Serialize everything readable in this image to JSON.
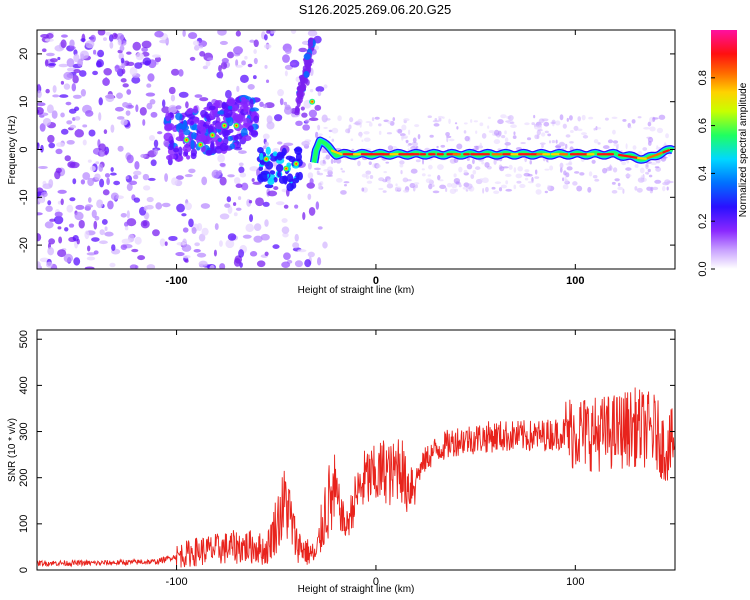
{
  "title": "S126.2025.269.06.20.G25",
  "colors": {
    "snr_line": "#e8231c",
    "colormap": [
      "#ffffff",
      "#c8a0ff",
      "#8a28ff",
      "#2a10ff",
      "#0070ff",
      "#00d8ff",
      "#20ff60",
      "#c8ff00",
      "#ffd200",
      "#ff6a00",
      "#ff1010",
      "#ff10a0"
    ]
  },
  "chart_data": [
    {
      "type": "heatmap",
      "name": "spectrogram",
      "xlabel": "Height of straight line (km)",
      "ylabel": "Frequency (Hz)",
      "xlim": [
        -170,
        150
      ],
      "ylim": [
        -25,
        25
      ],
      "xticks": [
        -100,
        0,
        100
      ],
      "yticks": [
        20,
        10,
        0,
        -10,
        -20
      ],
      "ridge": [
        {
          "x": -33,
          "y": -8
        },
        {
          "x": -30,
          "y": 0
        },
        {
          "x": -28,
          "y": 2
        },
        {
          "x": -20,
          "y": -1
        },
        {
          "x": -10,
          "y": -1
        },
        {
          "x": 0,
          "y": -1
        },
        {
          "x": 20,
          "y": -1
        },
        {
          "x": 40,
          "y": -1
        },
        {
          "x": 60,
          "y": -1
        },
        {
          "x": 80,
          "y": -1
        },
        {
          "x": 100,
          "y": -1
        },
        {
          "x": 120,
          "y": -1
        },
        {
          "x": 135,
          "y": -2
        },
        {
          "x": 148,
          "y": 0
        }
      ],
      "colorbar": {
        "label": "Normalized spectral amplitude",
        "range": [
          0,
          1
        ],
        "ticks": [
          0.0,
          0.2,
          0.4,
          0.6,
          0.8
        ]
      }
    },
    {
      "type": "line",
      "name": "snr",
      "xlabel": "Height of straight line (km)",
      "ylabel": "SNR (10 * v/v)",
      "xlim": [
        -170,
        150
      ],
      "ylim": [
        0,
        520
      ],
      "xticks": [
        -100,
        0,
        100
      ],
      "yticks": [
        0,
        100,
        200,
        300,
        400,
        500
      ],
      "series": [
        {
          "name": "SNR",
          "x": [
            -170,
            -140,
            -110,
            -100,
            -90,
            -80,
            -70,
            -60,
            -55,
            -50,
            -45,
            -40,
            -35,
            -30,
            -25,
            -20,
            -15,
            -10,
            -5,
            0,
            5,
            8,
            12,
            15,
            20,
            25,
            30,
            40,
            60,
            80,
            100,
            110,
            120,
            130,
            140,
            145,
            150
          ],
          "y": [
            15,
            15,
            18,
            30,
            40,
            45,
            50,
            50,
            40,
            100,
            150,
            60,
            40,
            30,
            140,
            160,
            90,
            160,
            200,
            200,
            220,
            200,
            240,
            180,
            200,
            240,
            260,
            280,
            290,
            290,
            300,
            295,
            300,
            310,
            300,
            260,
            280
          ]
        }
      ]
    }
  ]
}
